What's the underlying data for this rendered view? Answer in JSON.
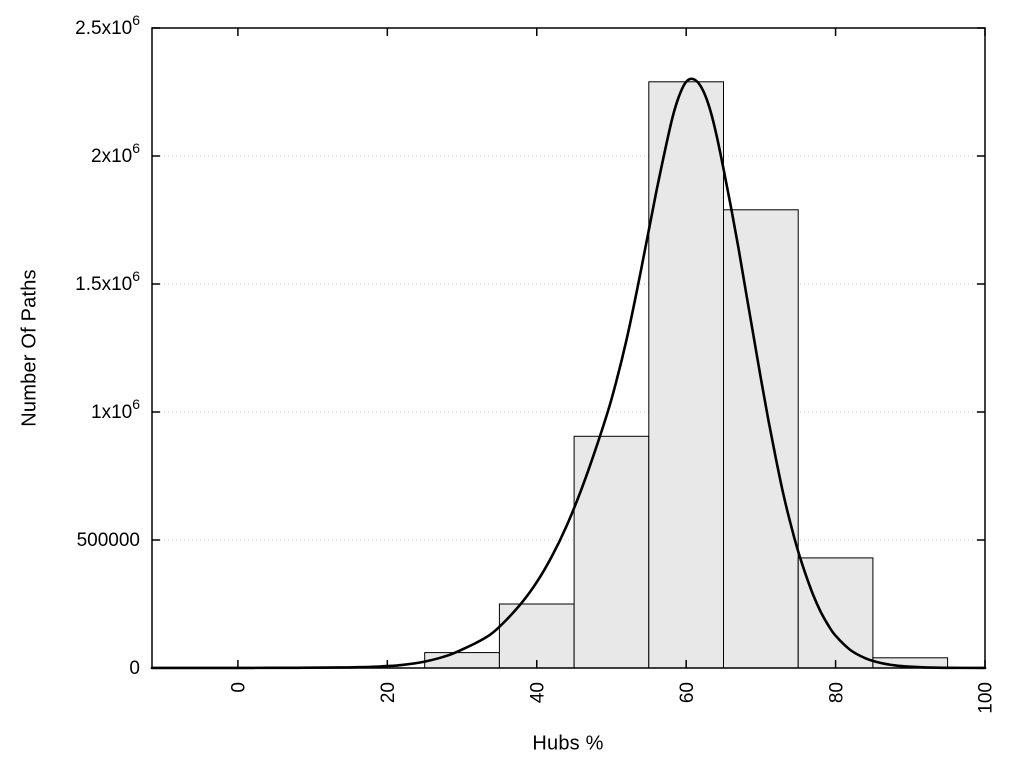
{
  "chart_data": {
    "type": "bar",
    "subtype": "histogram-with-fitted-curve",
    "xlabel": "Hubs %",
    "ylabel": "Number Of Paths",
    "xlim": [
      -11.5,
      100
    ],
    "ylim": [
      0,
      2500000
    ],
    "x_ticks": [
      0,
      20,
      40,
      60,
      80,
      100
    ],
    "x_tick_rotation": -90,
    "y_ticks": [
      {
        "value": 0,
        "label": "0",
        "sup": ""
      },
      {
        "value": 500000,
        "label": "500000",
        "sup": ""
      },
      {
        "value": 1000000,
        "label": "1x10",
        "sup": "6"
      },
      {
        "value": 1500000,
        "label": "1.5x10",
        "sup": "6"
      },
      {
        "value": 2000000,
        "label": "2x10",
        "sup": "6"
      },
      {
        "value": 2500000,
        "label": "2.5x10",
        "sup": "6"
      }
    ],
    "grid": "horizontal-dotted",
    "legend": "none",
    "bars": [
      {
        "x0": 25,
        "x1": 35,
        "value": 60000
      },
      {
        "x0": 35,
        "x1": 45,
        "value": 250000
      },
      {
        "x0": 45,
        "x1": 55,
        "value": 905000
      },
      {
        "x0": 55,
        "x1": 65,
        "value": 2290000
      },
      {
        "x0": 65,
        "x1": 75,
        "value": 1790000
      },
      {
        "x0": 75,
        "x1": 85,
        "value": 430000
      },
      {
        "x0": 85,
        "x1": 95,
        "value": 40000
      }
    ],
    "curve": {
      "x": [
        -11.5,
        -8,
        -4,
        0,
        4,
        8,
        12,
        15,
        18,
        20,
        22,
        25,
        28,
        30,
        32,
        34,
        36,
        38,
        40,
        42,
        44,
        46,
        48,
        50,
        52,
        54,
        56,
        58,
        59,
        60,
        61,
        62,
        63,
        64,
        65,
        66,
        67,
        68,
        69,
        70,
        71,
        72,
        73,
        74,
        75,
        76,
        77,
        78,
        79,
        80,
        82,
        84,
        86,
        88,
        90,
        92,
        95,
        100
      ],
      "y": [
        200,
        250,
        300,
        400,
        600,
        900,
        1500,
        2500,
        4500,
        7500,
        12000,
        25000,
        48000,
        72000,
        100000,
        135000,
        190000,
        255000,
        335000,
        435000,
        555000,
        700000,
        865000,
        1050000,
        1280000,
        1560000,
        1860000,
        2130000,
        2230000,
        2290000,
        2300000,
        2270000,
        2200000,
        2090000,
        1950000,
        1800000,
        1640000,
        1470000,
        1300000,
        1130000,
        970000,
        820000,
        680000,
        560000,
        455000,
        365000,
        285000,
        220000,
        168000,
        126000,
        70000,
        38000,
        20000,
        10000,
        5000,
        2500,
        900,
        200
      ]
    },
    "colors": {
      "bar_fill": "#e8e8e8",
      "bar_stroke": "#000000",
      "curve": "#000000",
      "grid": "#c9c9c9",
      "frame": "#000000",
      "background": "#ffffff"
    }
  }
}
